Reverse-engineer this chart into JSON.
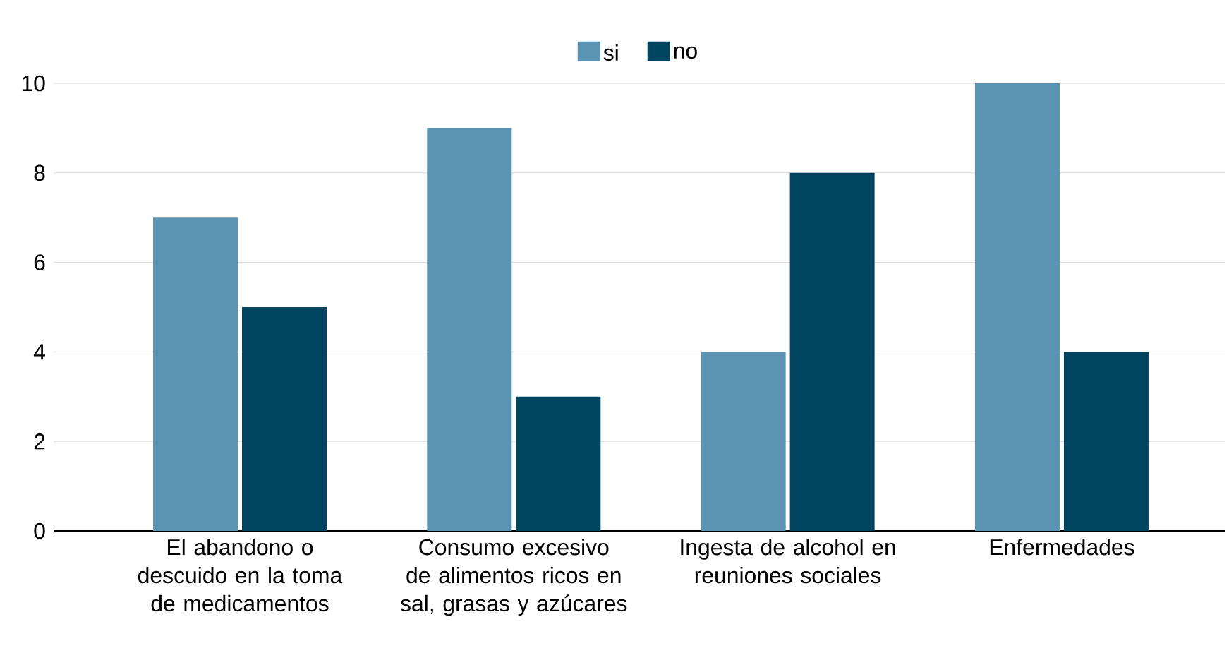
{
  "chart_data": {
    "type": "bar",
    "categories": [
      "El abandono o descuido en la toma de medicamentos",
      "Consumo excesivo de alimentos ricos en sal, grasas y azúcares",
      "Ingesta de alcohol en reuniones sociales",
      "Enfermedades"
    ],
    "series": [
      {
        "name": "si",
        "color": "#5b93b2",
        "values": [
          7,
          9,
          4,
          10
        ]
      },
      {
        "name": "no",
        "color": "#00445f",
        "values": [
          5,
          3,
          8,
          4
        ]
      }
    ],
    "ylim": [
      0,
      10
    ],
    "yticks": [
      0,
      2,
      4,
      6,
      8,
      10
    ],
    "grid": "y",
    "legend": "top"
  }
}
